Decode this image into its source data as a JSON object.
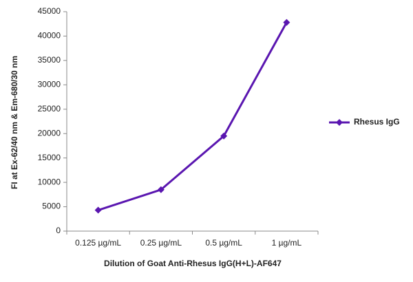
{
  "chart_data": {
    "type": "line",
    "x_label": "Dilution of Goat Anti-Rhesus IgG(H+L)-AF647",
    "y_label": "FI at Ex-62/40 nm & Em-680/30 nm",
    "categories": [
      "0.125 µg/mL",
      "0.25 µg/mL",
      "0.5 µg/mL",
      "1 µg/mL"
    ],
    "series": [
      {
        "name": "Rhesus IgG",
        "color": "#5a16b0",
        "values": [
          4300,
          8500,
          19500,
          42800
        ]
      }
    ],
    "ylim": [
      0,
      45000
    ],
    "yticks": [
      0,
      5000,
      10000,
      15000,
      20000,
      25000,
      30000,
      35000,
      40000,
      45000
    ],
    "legend": "right"
  }
}
